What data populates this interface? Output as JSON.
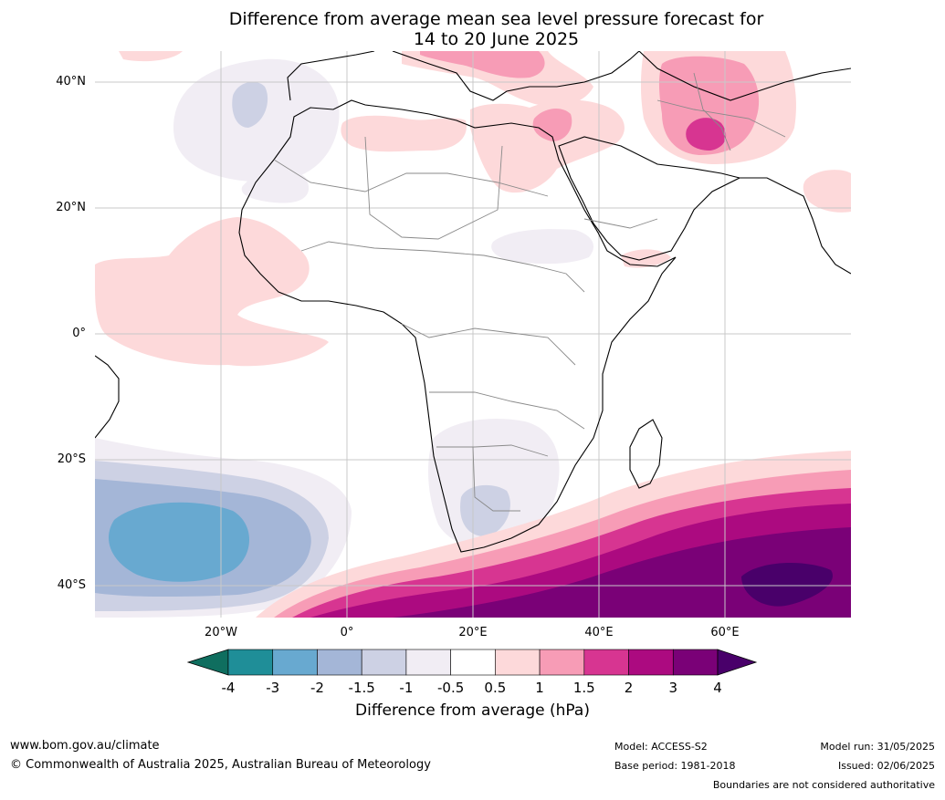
{
  "title": {
    "line1": "Difference from average mean sea level pressure forecast for",
    "line2": "14 to 20 June 2025"
  },
  "axes": {
    "lat_labels": [
      "40°N",
      "20°N",
      "0°",
      "20°S",
      "40°S"
    ],
    "lon_labels": [
      "20°W",
      "0°",
      "20°E",
      "40°E",
      "60°E"
    ],
    "lat_range": [
      -45,
      45
    ],
    "lon_range": [
      -40,
      80
    ],
    "gridlines": true
  },
  "colorbar": {
    "ticks": [
      "-4",
      "-3",
      "-2",
      "-1.5",
      "-1",
      "-0.5",
      "0.5",
      "1",
      "1.5",
      "2",
      "3",
      "4"
    ],
    "colors": [
      "#0f6e5f",
      "#1f8e98",
      "#68a9d0",
      "#a4b6d7",
      "#cdd1e4",
      "#f1edf4",
      "#ffffff",
      "#fdd9da",
      "#f79cb6",
      "#d73591",
      "#ac0a80",
      "#7a0177",
      "#49006a"
    ],
    "label": "Difference from average (hPa)",
    "extend": "both"
  },
  "fields": [
    {
      "region": "North Atlantic off Iberia",
      "level": "-1 to -0.5"
    },
    {
      "region": "Tropical Atlantic / West Africa",
      "level": "0.5 to 1"
    },
    {
      "region": "Mediterranean & Middle East",
      "level": "0.5 to 2"
    },
    {
      "region": "Iran",
      "level": "1.5 to 2"
    },
    {
      "region": "South Atlantic",
      "level": "-2 to -1.5"
    },
    {
      "region": "Southern Africa",
      "level": "-1 to -0.5"
    },
    {
      "region": "Southern Indian Ocean",
      "level": "> 4"
    }
  ],
  "footer": {
    "url": "www.bom.gov.au/climate",
    "copyright": "© Commonwealth of Australia 2025, Australian Bureau of Meteorology",
    "model": "Model: ACCESS-S2",
    "base_period": "Base period: 1981-2018",
    "model_run": "Model run: 31/05/2025",
    "issued": "Issued: 02/06/2025",
    "disclaimer": "Boundaries are not considered authoritative"
  }
}
